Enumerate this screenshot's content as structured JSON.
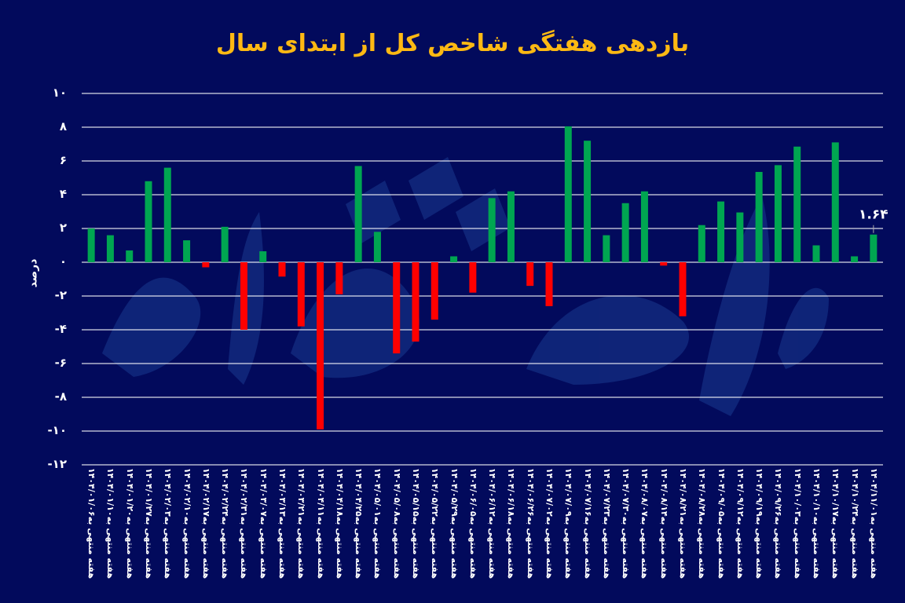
{
  "title": "بازدهی هفتگی شاخص کل از ابتدای سال",
  "colors": {
    "background": "#020a5c",
    "positive": "#00a651",
    "negative": "#ff0000",
    "title": "#fdb913",
    "grid": "#ffffff"
  },
  "chart_data": {
    "type": "bar",
    "title": "بازدهی هفتگی شاخص کل از ابتدای سال",
    "xlabel": "",
    "ylabel": "درصد",
    "ylim": [
      -12,
      10
    ],
    "yticks": [
      "۱۰",
      "۸",
      "۶",
      "۴",
      "۲",
      "۰",
      "-۲",
      "-۴",
      "-۶",
      "-۸",
      "-۱۰",
      "-۱۲"
    ],
    "ytick_values": [
      10,
      8,
      6,
      4,
      2,
      0,
      -2,
      -4,
      -6,
      -8,
      -10,
      -12
    ],
    "grid": true,
    "legend": null,
    "annotation": {
      "index": 41,
      "text": "۱.۶۴"
    },
    "categories": [
      "هفته منتهی به۱۴۰۴/۰۱/۰۶",
      "هفته منتهی به۱۴۰۴/۰۱/۱۰",
      "هفته منتهی به۱۴۰۴/۰۱/۲۰",
      "هفته منتهی به۱۴۰۴/۰۱/۲۷",
      "هفته منتهی به۱۴۰۴/۰۲/۰۳",
      "هفته منتهی به۱۴۰۴/۰۲/۱۰",
      "هفته منتهی به۱۴۰۴/۰۲/۱۷",
      "هفته منتهی به۱۴۰۴/۰۲/۲۴",
      "هفته منتهی به۱۴۰۴/۰۲/۳۱",
      "هفته منتهی به۱۴۰۴/۰۳/۰۷",
      "هفته منتهی به۱۴۰۴/۰۳/۱۳",
      "هفته منتهی به۱۴۰۴/۰۳/۲۱",
      "هفته منتهی به۱۴۰۴/۰۴/۱۱",
      "هفته منتهی به۱۴۰۴/۰۴/۱۸",
      "هفته منتهی به۱۴۰۴/۰۴/۲۵",
      "هفته منتهی به۱۴۰۴/۰۵/۰۱",
      "هفته منتهی به۱۴۰۴/۰۵/۰۸",
      "هفته منتهی به۱۴۰۴/۰۵/۱۵",
      "هفته منتهی به۱۴۰۴/۰۵/۲۲",
      "هفته منتهی به۱۴۰۴/۰۵/۲۹",
      "هفته منتهی به۱۴۰۴/۰۶/۰۵",
      "هفته منتهی به۱۴۰۴/۰۶/۱۲",
      "هفته منتهی به۱۴۰۴/۰۶/۱۸",
      "هفته منتهی به۱۴۰۴/۰۶/۲۶",
      "هفته منتهی به۱۴۰۴/۰۷/۰۲",
      "هفته منتهی به۱۴۰۴/۰۷/۰۹",
      "هفته منتهی به۱۴۰۴/۰۷/۱۶",
      "هفته منتهی به۱۴۰۴/۰۷/۲۳",
      "هفته منتهی به۱۴۰۴/۰۷/۳۰",
      "هفته منتهی به۱۴۰۴/۰۸/۰۷",
      "هفته منتهی به۱۴۰۴/۰۸/۱۴",
      "هفته منتهی به۱۴۰۴/۰۸/۲۱",
      "هفته منتهی به۱۴۰۴/۰۸/۲۸",
      "هفته منتهی به۱۴۰۴/۰۹/۰۵",
      "هفته منتهی به۱۴۰۴/۰۹/۱۲",
      "هفته منتهی به۱۴۰۴/۰۹/۱۹",
      "هفته منتهی به۱۴۰۴/۰۹/۲۶",
      "هفته منتهی به۱۴۰۴/۱۰/۰۳",
      "هفته منتهی به۱۴۰۴/۱۰/۱۰",
      "هفته منتهی به۱۴۰۴/۱۰/۱۷",
      "هفته منتهی به۱۴۰۴/۱۰/۲۴",
      "هفته منتهی به۱۴۰۴/۱۱/۰۱"
    ],
    "values": [
      2.0,
      1.6,
      0.7,
      4.8,
      5.6,
      1.3,
      -0.3,
      2.1,
      -4.0,
      0.65,
      -0.85,
      -3.8,
      -9.9,
      -1.9,
      5.7,
      1.8,
      -5.4,
      -4.7,
      -3.4,
      0.35,
      -1.8,
      3.8,
      4.2,
      -1.4,
      -2.6,
      8.05,
      7.2,
      1.6,
      3.5,
      4.2,
      -0.2,
      -3.2,
      2.2,
      3.6,
      2.95,
      5.35,
      5.75,
      6.85,
      1.0,
      7.1,
      0.35,
      1.64
    ]
  }
}
